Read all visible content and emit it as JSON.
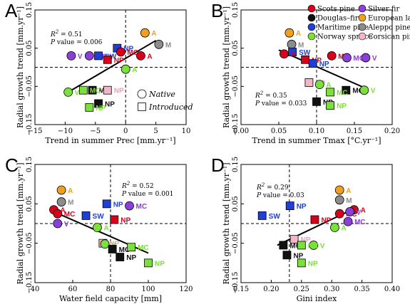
{
  "species_colors": {
    "Scots pine": "#d9001b",
    "Douglas-fir": "#111111",
    "Maritime pine": "#1f3fd6",
    "Norway spruce": "#7be03a",
    "Silver fir": "#8a3fd9",
    "European larch": "#f0a020",
    "Aleppo pine": "#8c8c8c",
    "Corsican pine": "#f4b5c8"
  },
  "legend": {
    "entries": [
      {
        "name": "Scots pine",
        "color": "#d9001b"
      },
      {
        "name": "Silver fir",
        "color": "#8a3fd9"
      },
      {
        "name": "Douglas–fir",
        "color": "#111111"
      },
      {
        "name": "European larch",
        "color": "#f0a020"
      },
      {
        "name": "Maritime pine",
        "color": "#1f3fd6"
      },
      {
        "name": "Aleppo pine",
        "color": "#8c8c8c"
      },
      {
        "name": "Norway spruce",
        "color": "#7be03a"
      },
      {
        "name": "Corsican pine",
        "color": "#f4b5c8"
      }
    ],
    "shapes": [
      {
        "name": "Native",
        "shape": "circle"
      },
      {
        "name": "Introduced",
        "shape": "square"
      }
    ]
  },
  "chart_data": [
    {
      "type": "scatter",
      "panel": "A",
      "xlabel": "Trend in summer Prec [mm.yr⁻¹]",
      "ylabel": "Radial growth trend [mm.yr⁻¹]",
      "xlim": [
        -15,
        10
      ],
      "ylim": [
        -0.15,
        0.15
      ],
      "xticks": [
        "−15",
        "−10",
        "−5",
        "0",
        "5",
        "10"
      ],
      "xtick_values": [
        -15,
        -10,
        -5,
        0,
        5,
        10
      ],
      "yticks": [
        "−0.15",
        "−0.05",
        "0.05",
        "0.15"
      ],
      "ytick_values": [
        -0.15,
        -0.05,
        0.05,
        0.15
      ],
      "stats": {
        "r2": "= 0.51",
        "p": "value = 0.006"
      },
      "fit": [
        [
          -9.5,
          -0.065
        ],
        [
          5,
          0.07
        ]
      ],
      "vline": 0,
      "points": [
        {
          "label": "M",
          "x": 5.5,
          "y": 0.06,
          "shape": "circle",
          "color": "#8c8c8c"
        },
        {
          "label": "A",
          "x": 3.2,
          "y": 0.09,
          "shape": "circle",
          "color": "#f0a020"
        },
        {
          "label": "NP",
          "x": -1.4,
          "y": 0.05,
          "shape": "square",
          "color": "#1f3fd6"
        },
        {
          "label": "V",
          "x": -9.0,
          "y": 0.03,
          "shape": "circle",
          "color": "#8a3fd9"
        },
        {
          "label": "MC",
          "x": -6.0,
          "y": 0.03,
          "shape": "circle",
          "color": "#8a3fd9"
        },
        {
          "label": "SW",
          "x": -4.5,
          "y": 0.03,
          "shape": "square",
          "color": "#1f3fd6"
        },
        {
          "label": "MC",
          "x": -0.8,
          "y": 0.04,
          "shape": "circle",
          "color": "#d9001b"
        },
        {
          "label": "A",
          "x": 2.5,
          "y": 0.03,
          "shape": "circle",
          "color": "#d9001b"
        },
        {
          "label": "NP",
          "x": -3.0,
          "y": 0.02,
          "shape": "square",
          "color": "#d9001b"
        },
        {
          "label": "A",
          "x": 0.0,
          "y": -0.005,
          "shape": "circle",
          "color": "#7be03a"
        },
        {
          "label": "V",
          "x": -9.5,
          "y": -0.065,
          "shape": "circle",
          "color": "#7be03a"
        },
        {
          "label": "MC",
          "x": -5.5,
          "y": -0.06,
          "shape": "square",
          "color": "#111111"
        },
        {
          "label": "MC",
          "x": -7.0,
          "y": -0.06,
          "shape": "square",
          "color": "#7be03a"
        },
        {
          "label": "NP",
          "x": -3.0,
          "y": -0.06,
          "shape": "square",
          "color": "#f4b5c8"
        },
        {
          "label": "NP",
          "x": -4.5,
          "y": -0.095,
          "shape": "square",
          "color": "#111111"
        },
        {
          "label": "NP",
          "x": -6.0,
          "y": -0.105,
          "shape": "square",
          "color": "#7be03a"
        }
      ]
    },
    {
      "type": "scatter",
      "panel": "B",
      "xlabel": "Trend in summer Tmax [°C.yr⁻¹]",
      "ylabel": "Radial growth trend [mm.yr⁻¹]",
      "xlim": [
        0,
        0.2
      ],
      "ylim": [
        -0.15,
        0.15
      ],
      "xticks": [
        "0.00",
        "0.05",
        "0.10",
        "0.15",
        "0.20"
      ],
      "xtick_values": [
        0,
        0.05,
        0.1,
        0.15,
        0.2
      ],
      "yticks": [
        "−0.15",
        "−0.05",
        "0.05",
        "0.15"
      ],
      "ytick_values": [
        -0.15,
        -0.05,
        0.05,
        0.15
      ],
      "stats": {
        "r2": "= 0.35",
        "p": "value = 0.033"
      },
      "fit": [
        [
          0.05,
          0.045
        ],
        [
          0.165,
          -0.055
        ]
      ],
      "vline": 0.1,
      "points": [
        {
          "label": "A",
          "x": 0.064,
          "y": 0.09,
          "shape": "circle",
          "color": "#f0a020"
        },
        {
          "label": "M",
          "x": 0.067,
          "y": 0.06,
          "shape": "circle",
          "color": "#8c8c8c"
        },
        {
          "label": "SW",
          "x": 0.068,
          "y": 0.04,
          "shape": "square",
          "color": "#1f3fd6"
        },
        {
          "label": "A",
          "x": 0.057,
          "y": 0.035,
          "shape": "circle",
          "color": "#d9001b"
        },
        {
          "label": "MC",
          "x": 0.12,
          "y": 0.03,
          "shape": "circle",
          "color": "#d9001b"
        },
        {
          "label": "MC",
          "x": 0.14,
          "y": 0.025,
          "shape": "circle",
          "color": "#8a3fd9"
        },
        {
          "label": "V",
          "x": 0.165,
          "y": 0.025,
          "shape": "circle",
          "color": "#8a3fd9"
        },
        {
          "label": "NP",
          "x": 0.085,
          "y": 0.02,
          "shape": "square",
          "color": "#d9001b"
        },
        {
          "label": "NP",
          "x": 0.095,
          "y": 0.01,
          "shape": "square",
          "color": "#1f3fd6"
        },
        {
          "label": "NP",
          "x": 0.09,
          "y": -0.04,
          "shape": "square",
          "color": "#f4b5c8"
        },
        {
          "label": "A",
          "x": 0.104,
          "y": -0.045,
          "shape": "circle",
          "color": "#7be03a"
        },
        {
          "label": "MC",
          "x": 0.139,
          "y": -0.06,
          "shape": "square",
          "color": "#111111"
        },
        {
          "label": "V",
          "x": 0.163,
          "y": -0.06,
          "shape": "circle",
          "color": "#7be03a"
        },
        {
          "label": "MC",
          "x": 0.118,
          "y": -0.065,
          "shape": "square",
          "color": "#7be03a"
        },
        {
          "label": "NP",
          "x": 0.1,
          "y": -0.09,
          "shape": "square",
          "color": "#111111"
        },
        {
          "label": "NP",
          "x": 0.118,
          "y": -0.1,
          "shape": "square",
          "color": "#7be03a"
        }
      ]
    },
    {
      "type": "scatter",
      "panel": "C",
      "xlabel": "Water field capacity [mm]",
      "ylabel": "Radial growth trend [mm.yr⁻¹]",
      "xlim": [
        40,
        120
      ],
      "ylim": [
        -0.15,
        0.15
      ],
      "xticks": [
        "40",
        "60",
        "80",
        "100",
        "120"
      ],
      "xtick_values": [
        40,
        60,
        80,
        100,
        120
      ],
      "yticks": [
        "−0.15",
        "−0.05",
        "0.05",
        "0.15"
      ],
      "ytick_values": [
        -0.15,
        -0.05,
        0.05,
        0.15
      ],
      "stats": {
        "r2": "= 0.52",
        "p": "value = 0.001"
      },
      "fit": [
        [
          50,
          0.03
        ],
        [
          100,
          -0.075
        ]
      ],
      "vline": 80,
      "points": [
        {
          "label": "A",
          "x": 54,
          "y": 0.085,
          "shape": "circle",
          "color": "#f0a020"
        },
        {
          "label": "M",
          "x": 54,
          "y": 0.055,
          "shape": "circle",
          "color": "#8c8c8c"
        },
        {
          "label": "A",
          "x": 50,
          "y": 0.035,
          "shape": "circle",
          "color": "#d9001b"
        },
        {
          "label": "MC",
          "x": 52,
          "y": 0.025,
          "shape": "circle",
          "color": "#d9001b"
        },
        {
          "label": "V",
          "x": 52,
          "y": 0.0,
          "shape": "circle",
          "color": "#8a3fd9"
        },
        {
          "label": "SW",
          "x": 67,
          "y": 0.02,
          "shape": "square",
          "color": "#1f3fd6"
        },
        {
          "label": "NP",
          "x": 78,
          "y": 0.05,
          "shape": "square",
          "color": "#1f3fd6"
        },
        {
          "label": "MC",
          "x": 90,
          "y": 0.045,
          "shape": "circle",
          "color": "#8a3fd9"
        },
        {
          "label": "NP",
          "x": 82,
          "y": 0.01,
          "shape": "square",
          "color": "#d9001b"
        },
        {
          "label": "A",
          "x": 73,
          "y": -0.01,
          "shape": "circle",
          "color": "#7be03a"
        },
        {
          "label": "NP",
          "x": 76,
          "y": -0.05,
          "shape": "square",
          "color": "#f4b5c8"
        },
        {
          "label": "V",
          "x": 77,
          "y": -0.052,
          "shape": "circle",
          "color": "#7be03a"
        },
        {
          "label": "MC",
          "x": 81,
          "y": -0.065,
          "shape": "square",
          "color": "#111111"
        },
        {
          "label": "MC",
          "x": 91,
          "y": -0.06,
          "shape": "square",
          "color": "#7be03a"
        },
        {
          "label": "NP",
          "x": 85,
          "y": -0.085,
          "shape": "square",
          "color": "#111111"
        },
        {
          "label": "NP",
          "x": 100,
          "y": -0.1,
          "shape": "square",
          "color": "#7be03a"
        }
      ]
    },
    {
      "type": "scatter",
      "panel": "D",
      "xlabel": "Gini index",
      "ylabel": "Radial growth trend [mm.yr⁻¹]",
      "xlim": [
        0.15,
        0.4
      ],
      "ylim": [
        -0.15,
        0.15
      ],
      "xticks": [
        "0.15",
        "0.20",
        "0.25",
        "0.30",
        "0.35",
        "0.40"
      ],
      "xtick_values": [
        0.15,
        0.2,
        0.25,
        0.3,
        0.35,
        0.4
      ],
      "yticks": [
        "−0.15",
        "−0.05",
        "0.05",
        "0.15"
      ],
      "ytick_values": [
        -0.15,
        -0.05,
        0.05,
        0.15
      ],
      "stats": {
        "r2": "= 0.29",
        "p": "value = 0.03"
      },
      "fit": [
        [
          0.21,
          -0.055
        ],
        [
          0.34,
          0.04
        ]
      ],
      "vline": 0.23,
      "points": [
        {
          "label": "A",
          "x": 0.313,
          "y": 0.085,
          "shape": "circle",
          "color": "#f0a020"
        },
        {
          "label": "M",
          "x": 0.313,
          "y": 0.06,
          "shape": "circle",
          "color": "#8c8c8c"
        },
        {
          "label": "NP",
          "x": 0.231,
          "y": 0.045,
          "shape": "square",
          "color": "#1f3fd6"
        },
        {
          "label": "A",
          "x": 0.337,
          "y": 0.035,
          "shape": "circle",
          "color": "#d9001b"
        },
        {
          "label": "MC",
          "x": 0.313,
          "y": 0.025,
          "shape": "circle",
          "color": "#d9001b"
        },
        {
          "label": "V",
          "x": 0.33,
          "y": 0.03,
          "shape": "circle",
          "color": "#8a3fd9"
        },
        {
          "label": "MC",
          "x": 0.327,
          "y": 0.005,
          "shape": "circle",
          "color": "#8a3fd9"
        },
        {
          "label": "SW",
          "x": 0.185,
          "y": 0.02,
          "shape": "square",
          "color": "#1f3fd6"
        },
        {
          "label": "NP",
          "x": 0.272,
          "y": 0.01,
          "shape": "square",
          "color": "#d9001b"
        },
        {
          "label": "A",
          "x": 0.305,
          "y": -0.01,
          "shape": "circle",
          "color": "#7be03a"
        },
        {
          "label": "NP",
          "x": 0.238,
          "y": -0.04,
          "shape": "square",
          "color": "#f4b5c8"
        },
        {
          "label": "V",
          "x": 0.27,
          "y": -0.055,
          "shape": "circle",
          "color": "#7be03a"
        },
        {
          "label": "MC",
          "x": 0.22,
          "y": -0.055,
          "shape": "square",
          "color": "#111111"
        },
        {
          "label": "MC",
          "x": 0.25,
          "y": -0.055,
          "shape": "square",
          "color": "#7be03a"
        },
        {
          "label": "NP",
          "x": 0.226,
          "y": -0.08,
          "shape": "square",
          "color": "#111111"
        },
        {
          "label": "NP",
          "x": 0.25,
          "y": -0.1,
          "shape": "square",
          "color": "#7be03a"
        }
      ]
    }
  ]
}
